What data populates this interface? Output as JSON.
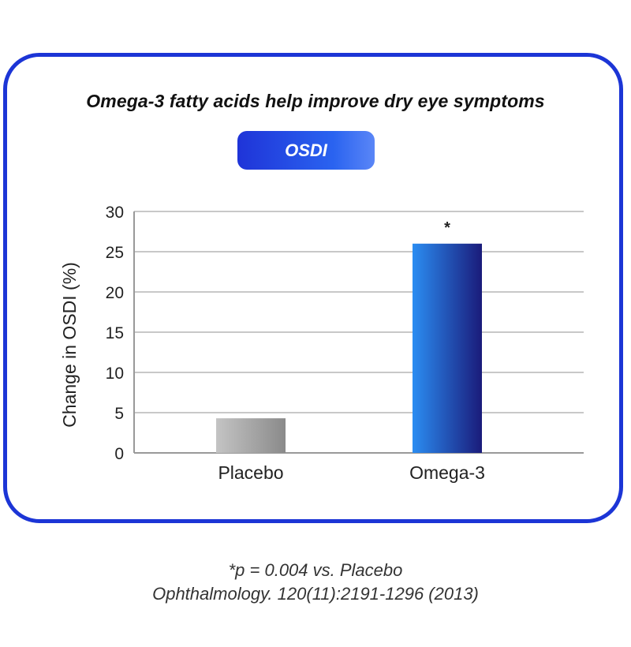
{
  "title": "Omega-3 fatty acids help improve dry eye symptoms",
  "badge": "OSDI",
  "chart_data": {
    "type": "bar",
    "categories": [
      "Placebo",
      "Omega-3"
    ],
    "values": [
      4.3,
      26
    ],
    "ylabel": "Change in OSDI (%)",
    "xlabel": "",
    "ylim": [
      0,
      30
    ],
    "yticks": [
      "0",
      "5",
      "10",
      "15",
      "20",
      "25",
      "30"
    ],
    "annotations": [
      {
        "category": "Omega-3",
        "text": "*"
      }
    ],
    "grid": "horizontal",
    "colors": {
      "placebo": "#b3b3b3",
      "omega3_start": "#2b8df2",
      "omega3_end": "#1a1b7a",
      "grid": "#b5b5b5",
      "axis": "#999999"
    }
  },
  "footnote": {
    "line1": "*p = 0.004 vs. Placebo",
    "line2": "Ophthalmology. 120(11):2191-1296 (2013)"
  }
}
